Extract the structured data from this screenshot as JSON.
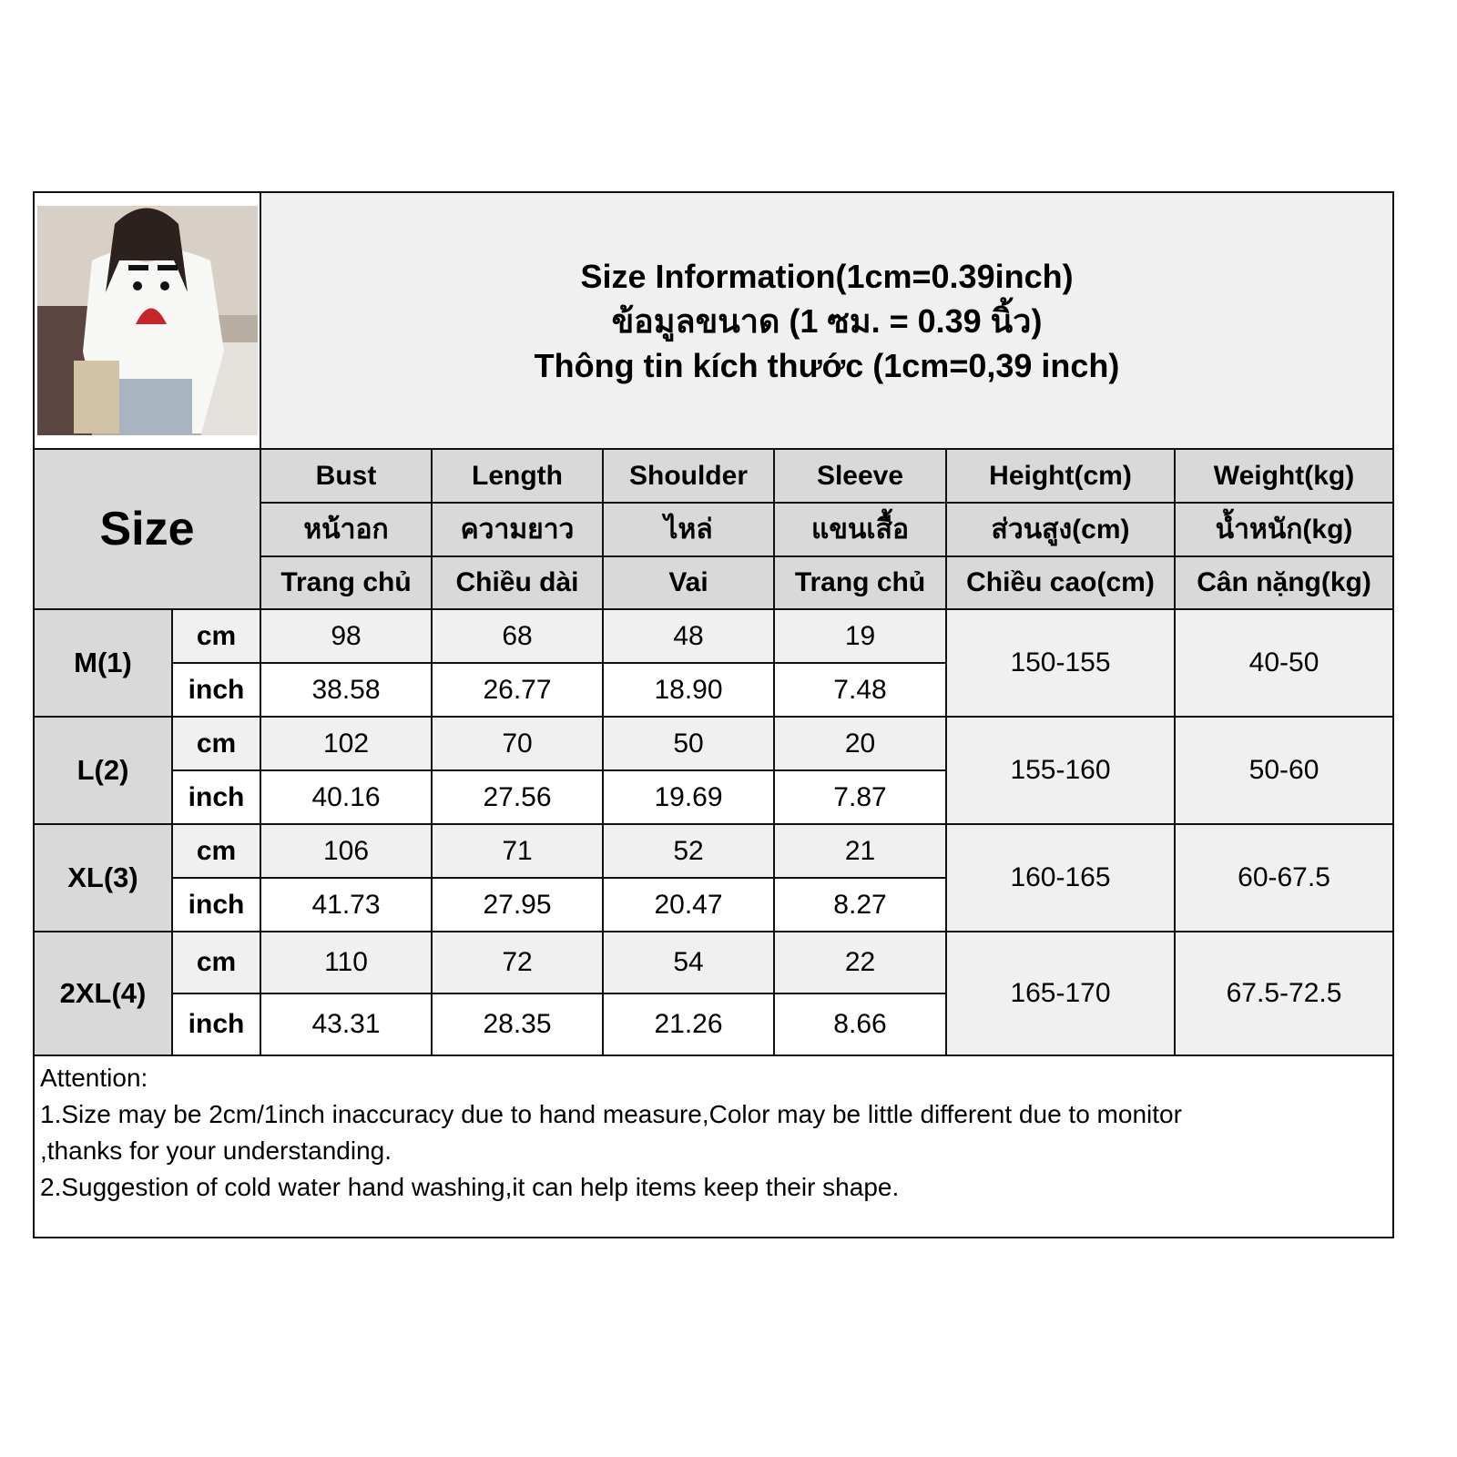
{
  "title": {
    "lines": [
      "Size Information(1cm=0.39inch)",
      "ข้อมูลขนาด (1 ซม. = 0.39 นิ้ว)",
      "Thông tin kích thước (1cm=0,39 inch)"
    ]
  },
  "size_label": "Size",
  "headers": [
    {
      "en": "Bust",
      "th": "หน้าอก",
      "vi": "Trang chủ"
    },
    {
      "en": "Length",
      "th": "ความยาว",
      "vi": "Chiều dài"
    },
    {
      "en": "Shoulder",
      "th": "ไหล่",
      "vi": "Vai"
    },
    {
      "en": "Sleeve",
      "th": "แขนเสื้อ",
      "vi": "Trang chủ"
    },
    {
      "en": "Height(cm)",
      "th": "ส่วนสูง(cm)",
      "vi": "Chiều cao(cm)"
    },
    {
      "en": "Weight(kg)",
      "th": "น้ำหนัก(kg)",
      "vi": "Cân nặng(kg)"
    }
  ],
  "units": {
    "cm": "cm",
    "inch": "inch"
  },
  "rows": [
    {
      "size": "M(1)",
      "cm": [
        "98",
        "68",
        "48",
        "19"
      ],
      "inch": [
        "38.58",
        "26.77",
        "18.90",
        "7.48"
      ],
      "height": "150-155",
      "weight": "40-50"
    },
    {
      "size": "L(2)",
      "cm": [
        "102",
        "70",
        "50",
        "20"
      ],
      "inch": [
        "40.16",
        "27.56",
        "19.69",
        "7.87"
      ],
      "height": "155-160",
      "weight": "50-60"
    },
    {
      "size": "XL(3)",
      "cm": [
        "106",
        "71",
        "52",
        "21"
      ],
      "inch": [
        "41.73",
        "27.95",
        "20.47",
        "8.27"
      ],
      "height": "160-165",
      "weight": "60-67.5"
    },
    {
      "size": "2XL(4)",
      "cm": [
        "110",
        "72",
        "54",
        "22"
      ],
      "inch": [
        "43.31",
        "28.35",
        "21.26",
        "8.66"
      ],
      "height": "165-170",
      "weight": "67.5-72.5"
    }
  ],
  "attention": {
    "heading": "Attention:",
    "lines": [
      "1.Size may be 2cm/1inch inaccuracy due to hand measure,Color may be little different due to monitor",
      ",thanks for your understanding.",
      "2.Suggestion of cold water hand washing,it can help items keep their shape."
    ]
  }
}
